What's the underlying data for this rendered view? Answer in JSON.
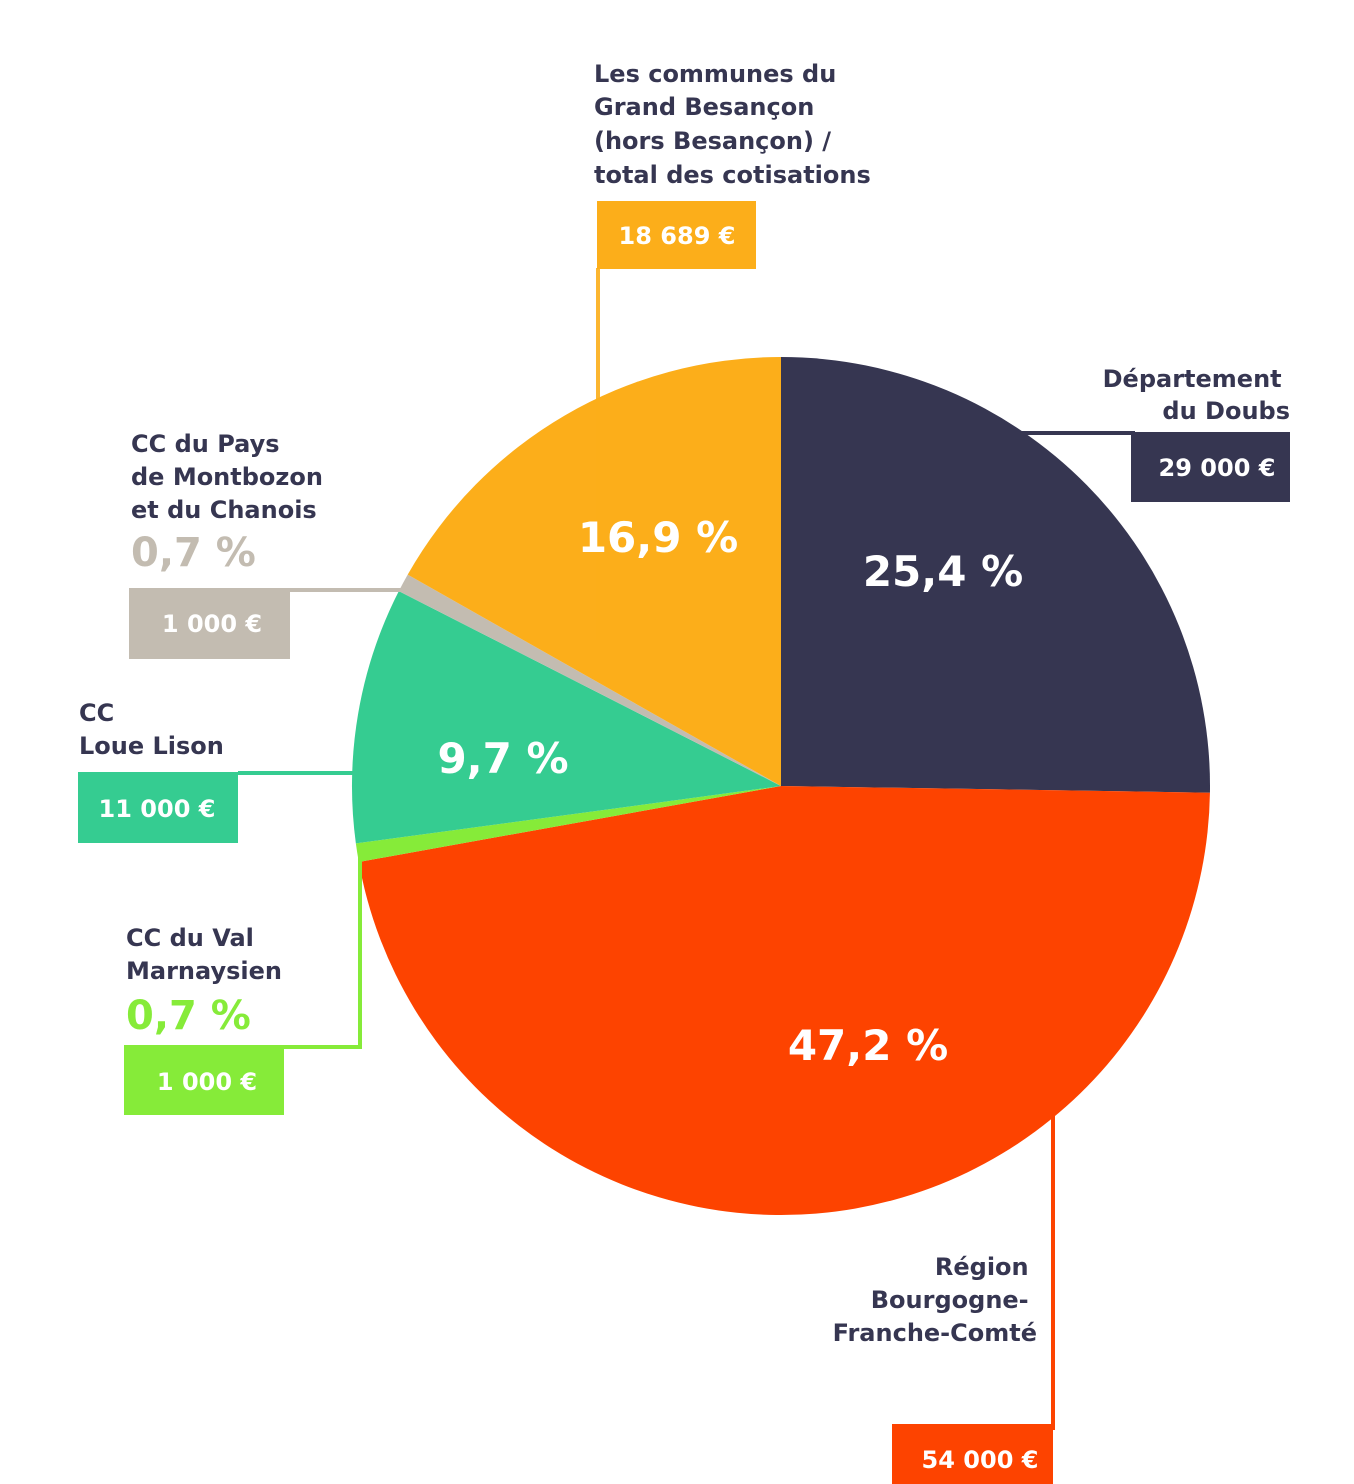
{
  "chart_data": {
    "type": "pie",
    "title": "",
    "slices": [
      {
        "key": "doubs",
        "label_lines": [
          "Département",
          "du Doubs"
        ],
        "pct": 25.4,
        "pct_text": "25,4 %",
        "amount": "29 000 €",
        "color": "#363651"
      },
      {
        "key": "region",
        "label_lines": [
          "Région",
          "Bourgogne-",
          "Franche-Comté"
        ],
        "pct": 47.2,
        "pct_text": "47,2 %",
        "amount": "54 000 €",
        "color": "#fd4300"
      },
      {
        "key": "val",
        "label_lines": [
          "CC du Val",
          "Marnaysien"
        ],
        "pct": 0.7,
        "pct_text": "0,7 %",
        "amount": "1 000 €",
        "color": "#86eb39"
      },
      {
        "key": "loue",
        "label_lines": [
          "CC",
          "Loue Lison"
        ],
        "pct": 9.7,
        "pct_text": "9,7 %",
        "amount": "11 000 €",
        "color": "#35cc91"
      },
      {
        "key": "montbozon",
        "label_lines": [
          "CC du Pays",
          "de Montbozon",
          "et du Chanois"
        ],
        "pct": 0.7,
        "pct_text": "0,7 %",
        "amount": "1 000 €",
        "color": "#c3bcb1"
      },
      {
        "key": "communes",
        "label_lines": [
          "Les communes du",
          "Grand Besançon",
          "(hors Besançon) /",
          "total des cotisations"
        ],
        "pct": 16.9,
        "pct_text": "16,9 %",
        "amount": "18 689 €",
        "color": "#fcae1a"
      }
    ]
  }
}
